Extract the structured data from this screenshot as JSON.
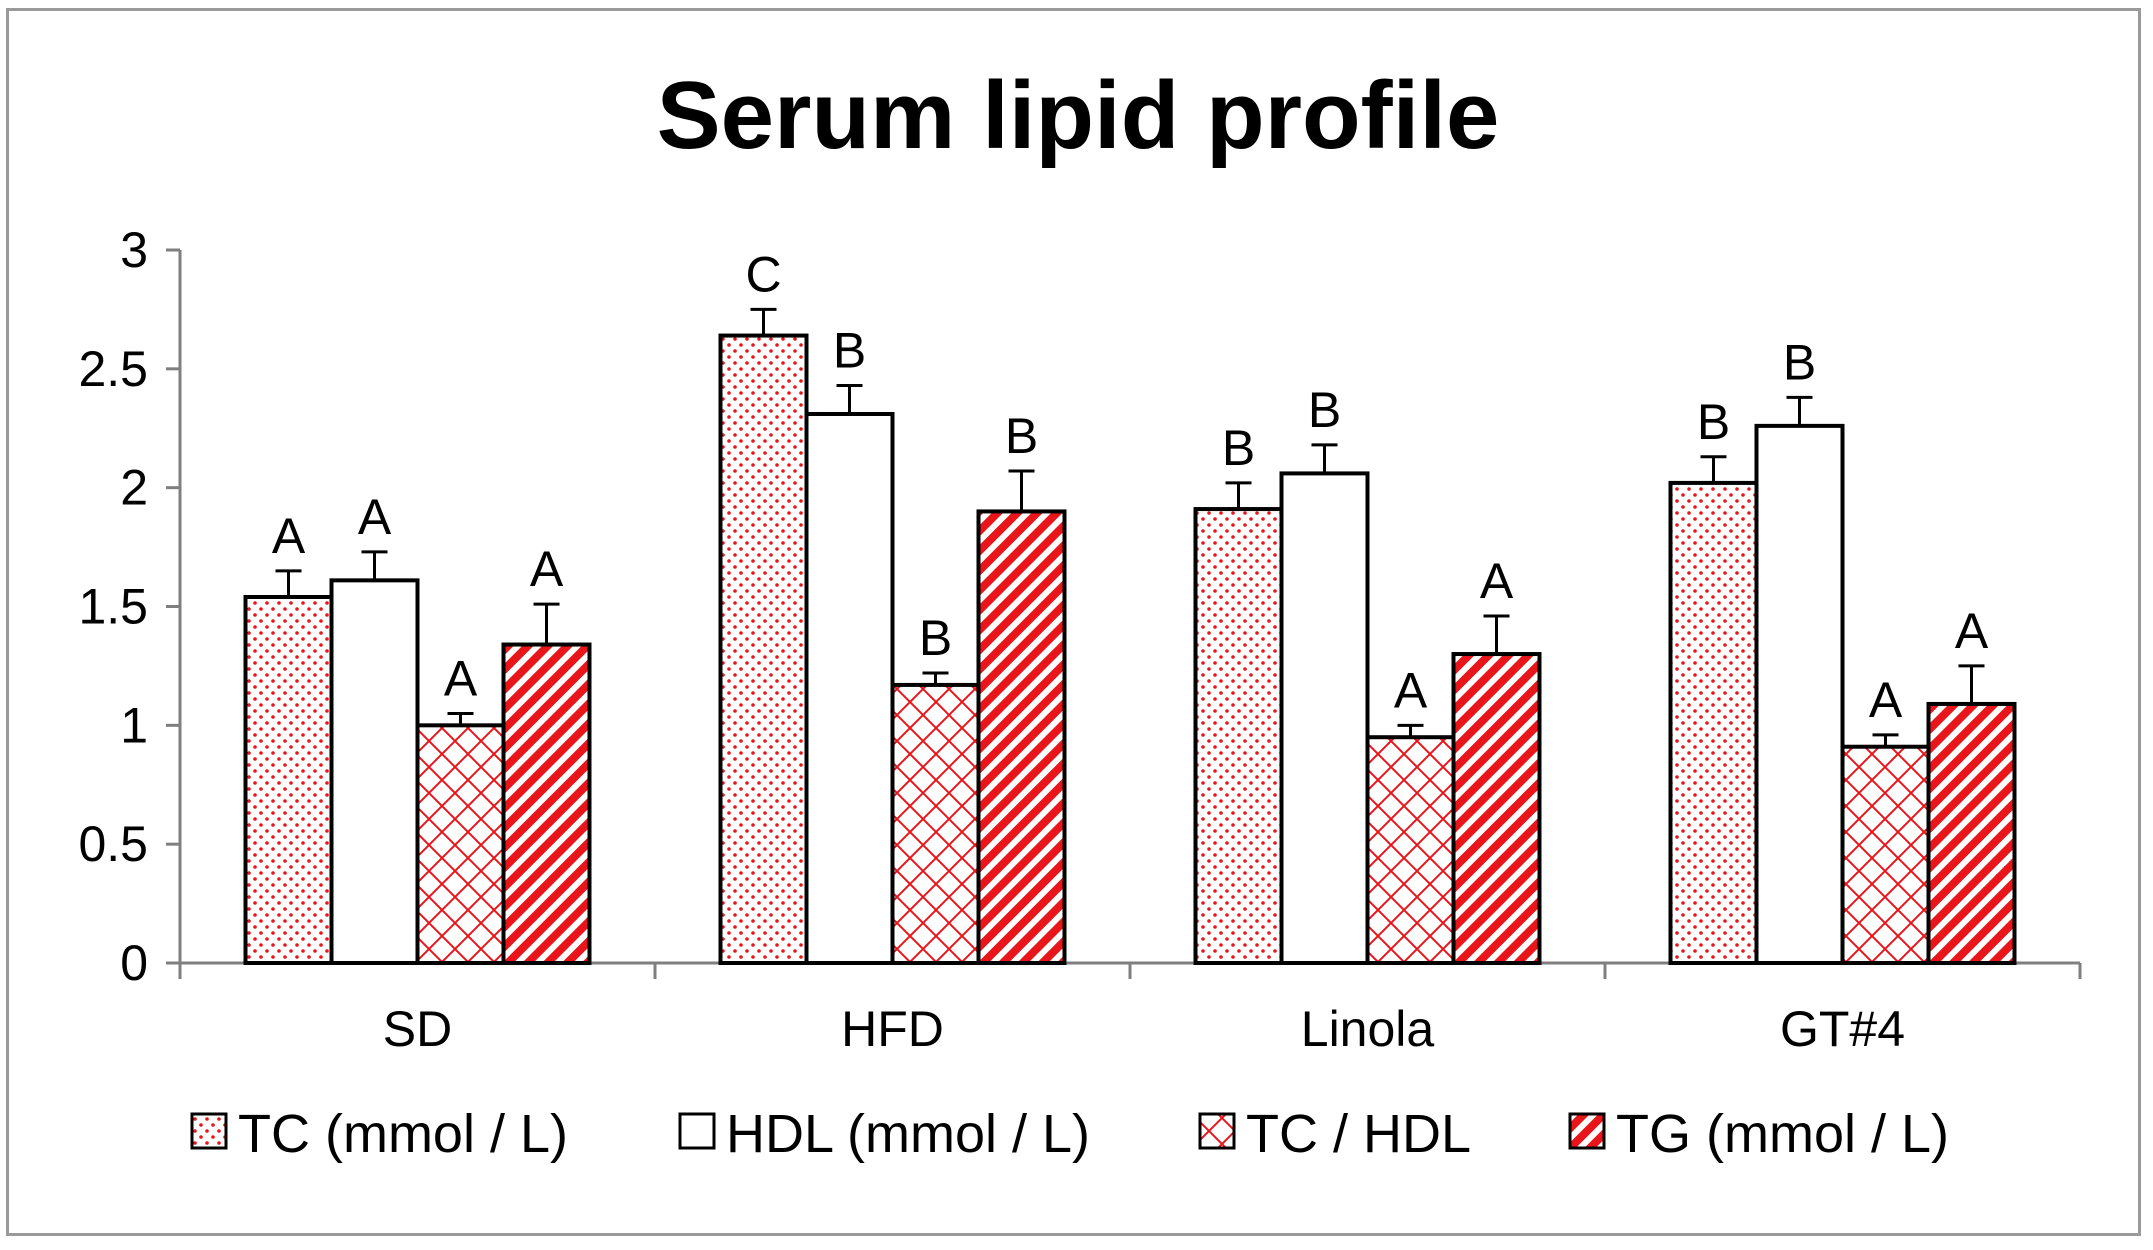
{
  "chart_data": {
    "type": "bar",
    "title": "Serum lipid profile",
    "xlabel": "",
    "ylabel": "",
    "ylim": [
      0,
      3
    ],
    "yticks": [
      "0",
      "0.5",
      "1",
      "1.5",
      "2",
      "2.5",
      "3"
    ],
    "ytick_values": [
      0,
      0.5,
      1,
      1.5,
      2,
      2.5,
      3
    ],
    "categories": [
      "SD",
      "HFD",
      "Linola",
      "GT#4"
    ],
    "series": [
      {
        "name": "TC (mmol / L)",
        "values": [
          1.54,
          2.64,
          1.91,
          2.02
        ],
        "errors": [
          0.11,
          0.11,
          0.11,
          0.11
        ],
        "labels": [
          "A",
          "C",
          "B",
          "B"
        ],
        "pattern": "dots"
      },
      {
        "name": "HDL (mmol / L)",
        "values": [
          1.61,
          2.31,
          2.06,
          2.26
        ],
        "errors": [
          0.12,
          0.12,
          0.12,
          0.12
        ],
        "labels": [
          "A",
          "B",
          "B",
          "B"
        ],
        "pattern": "none"
      },
      {
        "name": "TC / HDL",
        "values": [
          1.0,
          1.17,
          0.95,
          0.91
        ],
        "errors": [
          0.05,
          0.05,
          0.05,
          0.05
        ],
        "labels": [
          "A",
          "B",
          "A",
          "A"
        ],
        "pattern": "crosshatch"
      },
      {
        "name": "TG (mmol / L)",
        "values": [
          1.34,
          1.9,
          1.3,
          1.09
        ],
        "errors": [
          0.17,
          0.17,
          0.16,
          0.16
        ],
        "labels": [
          "A",
          "B",
          "A",
          "A"
        ],
        "pattern": "diagonal"
      }
    ],
    "grid": false,
    "legend": "bottom",
    "colors": {
      "accent": "#e8151b",
      "bar_fill": "#ffffff",
      "stroke": "#000000"
    }
  }
}
